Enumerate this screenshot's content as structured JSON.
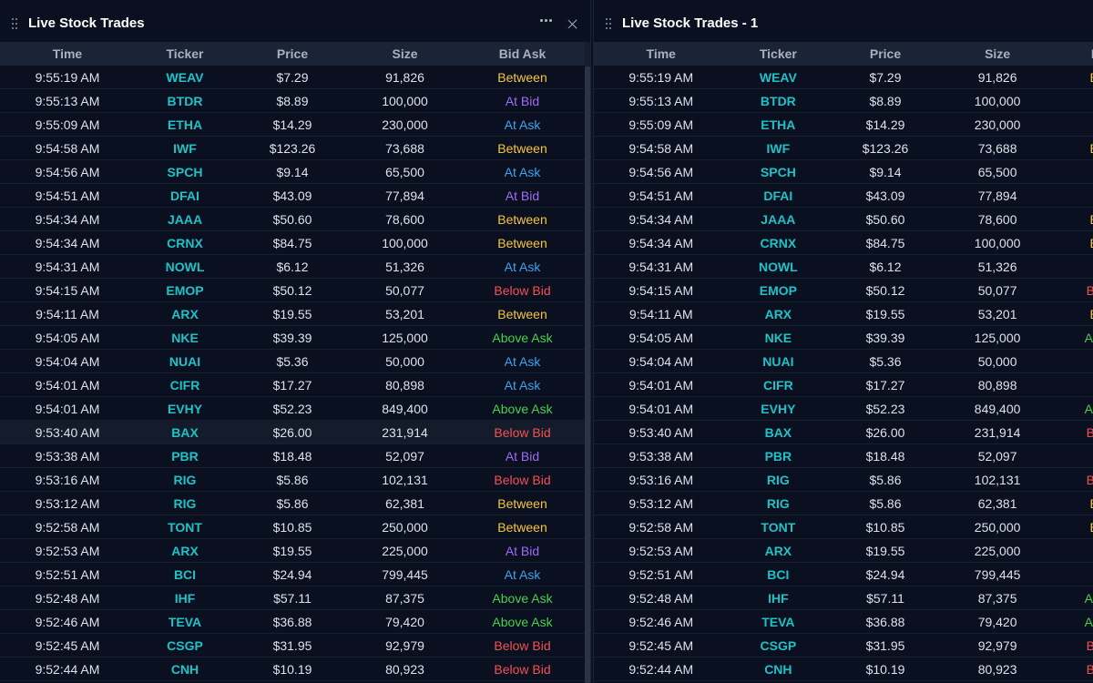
{
  "panels": [
    {
      "title": "Live Stock Trades"
    },
    {
      "title": "Live Stock Trades - 1"
    }
  ],
  "columns": [
    "Time",
    "Ticker",
    "Price",
    "Size",
    "Bid Ask"
  ],
  "bid_ask_colors": {
    "Between": "#f5c542",
    "At Bid": "#9f6bf5",
    "At Ask": "#3ca3f0",
    "Below Bid": "#f05252",
    "Above Ask": "#4ad04e"
  },
  "ticker_color": "#1fc2c7",
  "rows": [
    {
      "time": "9:55:19 AM",
      "ticker": "WEAV",
      "price": "$7.29",
      "size": "91,826",
      "bid_ask": "Between"
    },
    {
      "time": "9:55:13 AM",
      "ticker": "BTDR",
      "price": "$8.89",
      "size": "100,000",
      "bid_ask": "At Bid"
    },
    {
      "time": "9:55:09 AM",
      "ticker": "ETHA",
      "price": "$14.29",
      "size": "230,000",
      "bid_ask": "At Ask"
    },
    {
      "time": "9:54:58 AM",
      "ticker": "IWF",
      "price": "$123.26",
      "size": "73,688",
      "bid_ask": "Between"
    },
    {
      "time": "9:54:56 AM",
      "ticker": "SPCH",
      "price": "$9.14",
      "size": "65,500",
      "bid_ask": "At Ask"
    },
    {
      "time": "9:54:51 AM",
      "ticker": "DFAI",
      "price": "$43.09",
      "size": "77,894",
      "bid_ask": "At Bid"
    },
    {
      "time": "9:54:34 AM",
      "ticker": "JAAA",
      "price": "$50.60",
      "size": "78,600",
      "bid_ask": "Between"
    },
    {
      "time": "9:54:34 AM",
      "ticker": "CRNX",
      "price": "$84.75",
      "size": "100,000",
      "bid_ask": "Between"
    },
    {
      "time": "9:54:31 AM",
      "ticker": "NOWL",
      "price": "$6.12",
      "size": "51,326",
      "bid_ask": "At Ask"
    },
    {
      "time": "9:54:15 AM",
      "ticker": "EMOP",
      "price": "$50.12",
      "size": "50,077",
      "bid_ask": "Below Bid"
    },
    {
      "time": "9:54:11 AM",
      "ticker": "ARX",
      "price": "$19.55",
      "size": "53,201",
      "bid_ask": "Between"
    },
    {
      "time": "9:54:05 AM",
      "ticker": "NKE",
      "price": "$39.39",
      "size": "125,000",
      "bid_ask": "Above Ask"
    },
    {
      "time": "9:54:04 AM",
      "ticker": "NUAI",
      "price": "$5.36",
      "size": "50,000",
      "bid_ask": "At Ask"
    },
    {
      "time": "9:54:01 AM",
      "ticker": "CIFR",
      "price": "$17.27",
      "size": "80,898",
      "bid_ask": "At Ask"
    },
    {
      "time": "9:54:01 AM",
      "ticker": "EVHY",
      "price": "$52.23",
      "size": "849,400",
      "bid_ask": "Above Ask"
    },
    {
      "time": "9:53:40 AM",
      "ticker": "BAX",
      "price": "$26.00",
      "size": "231,914",
      "bid_ask": "Below Bid"
    },
    {
      "time": "9:53:38 AM",
      "ticker": "PBR",
      "price": "$18.48",
      "size": "52,097",
      "bid_ask": "At Bid"
    },
    {
      "time": "9:53:16 AM",
      "ticker": "RIG",
      "price": "$5.86",
      "size": "102,131",
      "bid_ask": "Below Bid"
    },
    {
      "time": "9:53:12 AM",
      "ticker": "RIG",
      "price": "$5.86",
      "size": "62,381",
      "bid_ask": "Between"
    },
    {
      "time": "9:52:58 AM",
      "ticker": "TONT",
      "price": "$10.85",
      "size": "250,000",
      "bid_ask": "Between"
    },
    {
      "time": "9:52:53 AM",
      "ticker": "ARX",
      "price": "$19.55",
      "size": "225,000",
      "bid_ask": "At Bid"
    },
    {
      "time": "9:52:51 AM",
      "ticker": "BCI",
      "price": "$24.94",
      "size": "799,445",
      "bid_ask": "At Ask"
    },
    {
      "time": "9:52:48 AM",
      "ticker": "IHF",
      "price": "$57.11",
      "size": "87,375",
      "bid_ask": "Above Ask"
    },
    {
      "time": "9:52:46 AM",
      "ticker": "TEVA",
      "price": "$36.88",
      "size": "79,420",
      "bid_ask": "Above Ask"
    },
    {
      "time": "9:52:45 AM",
      "ticker": "CSGP",
      "price": "$31.95",
      "size": "92,979",
      "bid_ask": "Below Bid"
    },
    {
      "time": "9:52:44 AM",
      "ticker": "CNH",
      "price": "$10.19",
      "size": "80,923",
      "bid_ask": "Below Bid"
    }
  ]
}
